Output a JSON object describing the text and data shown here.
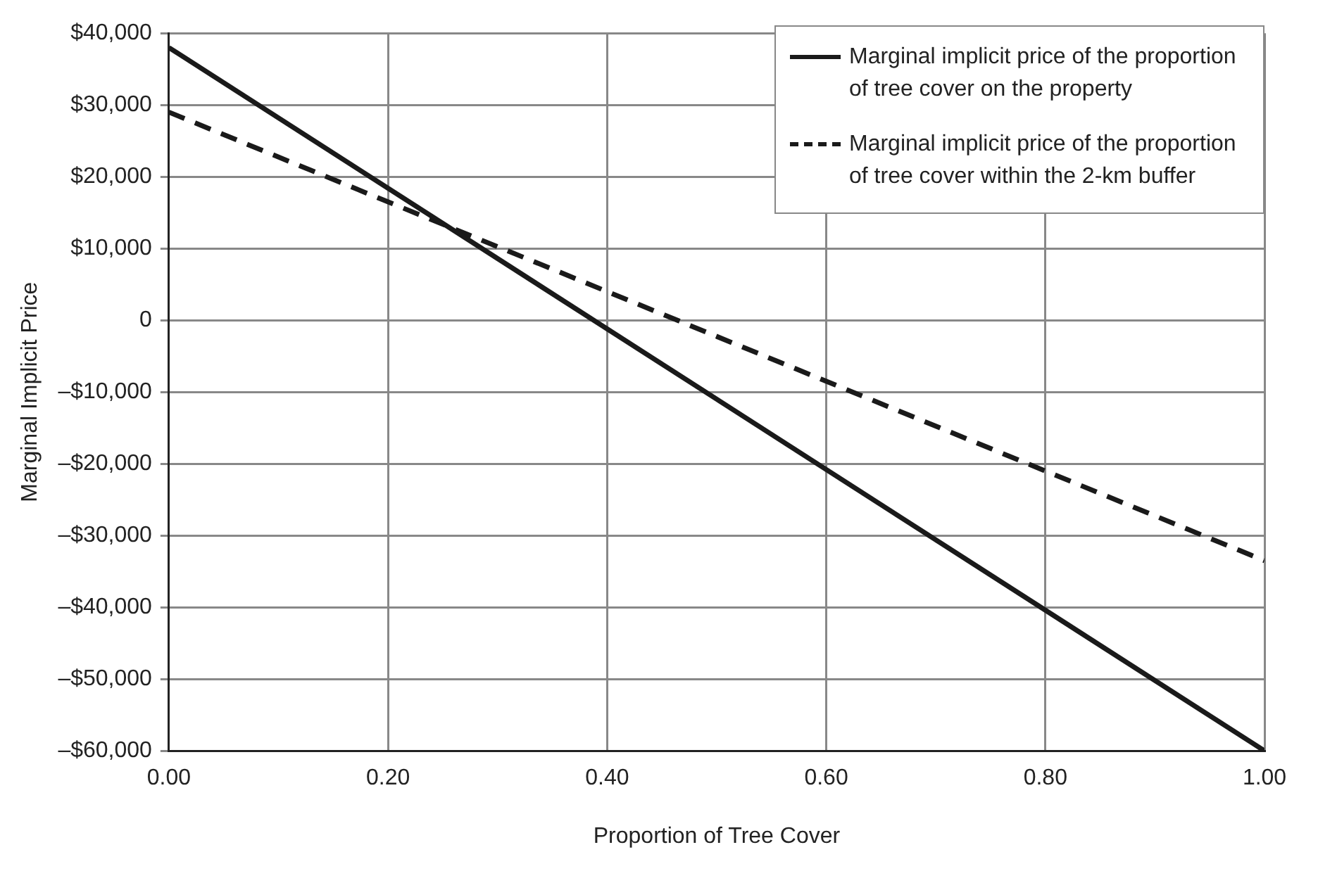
{
  "chart_data": {
    "type": "line",
    "xlabel": "Proportion of Tree Cover",
    "ylabel": "Marginal Implicit Price",
    "xlim": [
      0,
      1
    ],
    "xticks": [
      {
        "value": 0,
        "label": "0.00"
      },
      {
        "value": 0.2,
        "label": "0.20"
      },
      {
        "value": 0.4,
        "label": "0.40"
      },
      {
        "value": 0.6,
        "label": "0.60"
      },
      {
        "value": 0.8,
        "label": "0.80"
      },
      {
        "value": 1,
        "label": "1.00"
      }
    ],
    "ylim": [
      -60000,
      40000
    ],
    "yticks": [
      {
        "value": -60000,
        "label": "–$60,000"
      },
      {
        "value": -50000,
        "label": "–$50,000"
      },
      {
        "value": -40000,
        "label": "–$40,000"
      },
      {
        "value": -30000,
        "label": "–$30,000"
      },
      {
        "value": -20000,
        "label": "–$20,000"
      },
      {
        "value": -10000,
        "label": "–$10,000"
      },
      0,
      {
        "value": 10000,
        "label": "$10,000"
      },
      {
        "value": 20000,
        "label": "$20,000"
      },
      {
        "value": 30000,
        "label": "$30,000"
      },
      {
        "value": 40000,
        "label": "$40,000"
      }
    ],
    "x": [
      0,
      1
    ],
    "grid": true,
    "legend": "top right",
    "marker": "none",
    "series": [
      {
        "name": "Marginal implicit price of the proportion of tree cover on the property",
        "color": "#1a1a1a",
        "line_style": "solid",
        "values": [
          38000,
          -60000
        ]
      },
      {
        "name": "Marginal implicit price of the proportion of tree cover within the 2-km buffer",
        "color": "#1a1a1a",
        "line_style": "dashed",
        "values": [
          29000,
          -33500
        ]
      }
    ]
  }
}
